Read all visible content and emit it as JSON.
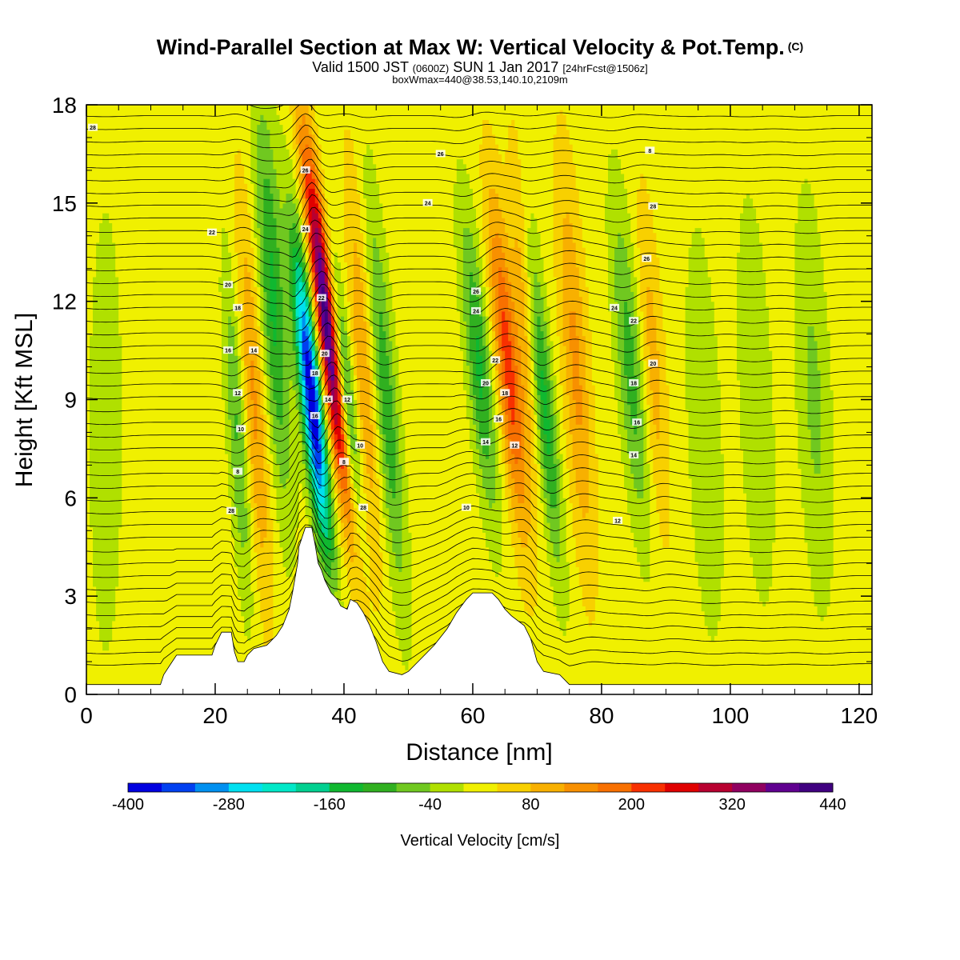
{
  "header": {
    "title": "Wind-Parallel Section at Max W: Vertical Velocity & Pot.Temp.",
    "title_mark": "(C)",
    "valid_prefix": "Valid 1500 JST",
    "valid_z": "(0600Z)",
    "valid_date": "SUN 1 Jan 2017",
    "valid_fcst": "[24hrFcst@1506z]",
    "box_info": "boxWmax=440@38.53,140.10,2109m"
  },
  "chart_data": {
    "type": "heatmap",
    "title": "Wind-Parallel Section at Max W: Vertical Velocity & Pot.Temp.",
    "xlabel": "Distance [nm]",
    "ylabel": "Height [Kft MSL]",
    "xlim": [
      0,
      122
    ],
    "ylim": [
      0,
      18
    ],
    "x_ticks": [
      0,
      20,
      40,
      60,
      80,
      100,
      120
    ],
    "y_ticks": [
      0,
      3,
      6,
      9,
      12,
      15,
      18
    ],
    "colorbar": {
      "label": "Vertical Velocity [cm/s]",
      "ticks": [
        -400,
        -280,
        -160,
        -40,
        80,
        200,
        320,
        440
      ],
      "min": -400,
      "max": 440,
      "step": 40,
      "colors": [
        "#0000e0",
        "#0040f0",
        "#0090f0",
        "#00e0f0",
        "#00e8c8",
        "#00d090",
        "#10b830",
        "#30b020",
        "#70c820",
        "#b0e000",
        "#f0f000",
        "#f8d000",
        "#f8b000",
        "#f89000",
        "#f87000",
        "#f83000",
        "#e00000",
        "#b80030",
        "#900060",
        "#600090",
        "#400080"
      ]
    },
    "terrain": [
      [
        0,
        0.3
      ],
      [
        11.5,
        0.3
      ],
      [
        12,
        0.6
      ],
      [
        13,
        0.9
      ],
      [
        14,
        1.2
      ],
      [
        19.5,
        1.2
      ],
      [
        20,
        1.5
      ],
      [
        21,
        1.9
      ],
      [
        22.5,
        1.9
      ],
      [
        23,
        1.3
      ],
      [
        23.5,
        1.0
      ],
      [
        24.5,
        1.0
      ],
      [
        25,
        1.2
      ],
      [
        26,
        1.4
      ],
      [
        28,
        1.5
      ],
      [
        29.5,
        1.8
      ],
      [
        30.5,
        2.1
      ],
      [
        31.5,
        2.6
      ],
      [
        32,
        3.1
      ],
      [
        32.8,
        4.0
      ],
      [
        33,
        4.5
      ],
      [
        34,
        5.1
      ],
      [
        35,
        5.1
      ],
      [
        35.5,
        4.6
      ],
      [
        36,
        4.0
      ],
      [
        36.5,
        3.8
      ],
      [
        37,
        3.5
      ],
      [
        37.5,
        3.3
      ],
      [
        38,
        3.1
      ],
      [
        39,
        2.9
      ],
      [
        39.5,
        2.7
      ],
      [
        40.5,
        2.6
      ],
      [
        41,
        2.9
      ],
      [
        42,
        2.8
      ],
      [
        43,
        2.5
      ],
      [
        44,
        2.1
      ],
      [
        45,
        1.6
      ],
      [
        46,
        1.0
      ],
      [
        47,
        0.7
      ],
      [
        49,
        0.6
      ],
      [
        50,
        0.7
      ],
      [
        52,
        1.1
      ],
      [
        54,
        1.5
      ],
      [
        56,
        2.0
      ],
      [
        57.5,
        2.5
      ],
      [
        59,
        2.9
      ],
      [
        60,
        3.1
      ],
      [
        63,
        3.1
      ],
      [
        64,
        2.9
      ],
      [
        65,
        2.6
      ],
      [
        66,
        2.4
      ],
      [
        68,
        2.1
      ],
      [
        69,
        1.7
      ],
      [
        70,
        1.0
      ],
      [
        71,
        0.7
      ],
      [
        73.5,
        0.6
      ],
      [
        75,
        0.3
      ],
      [
        122,
        0.3
      ]
    ],
    "contour_labels": [
      "28",
      "26",
      "24",
      "22",
      "20",
      "18",
      "16",
      "14",
      "12",
      "10",
      "8"
    ]
  }
}
